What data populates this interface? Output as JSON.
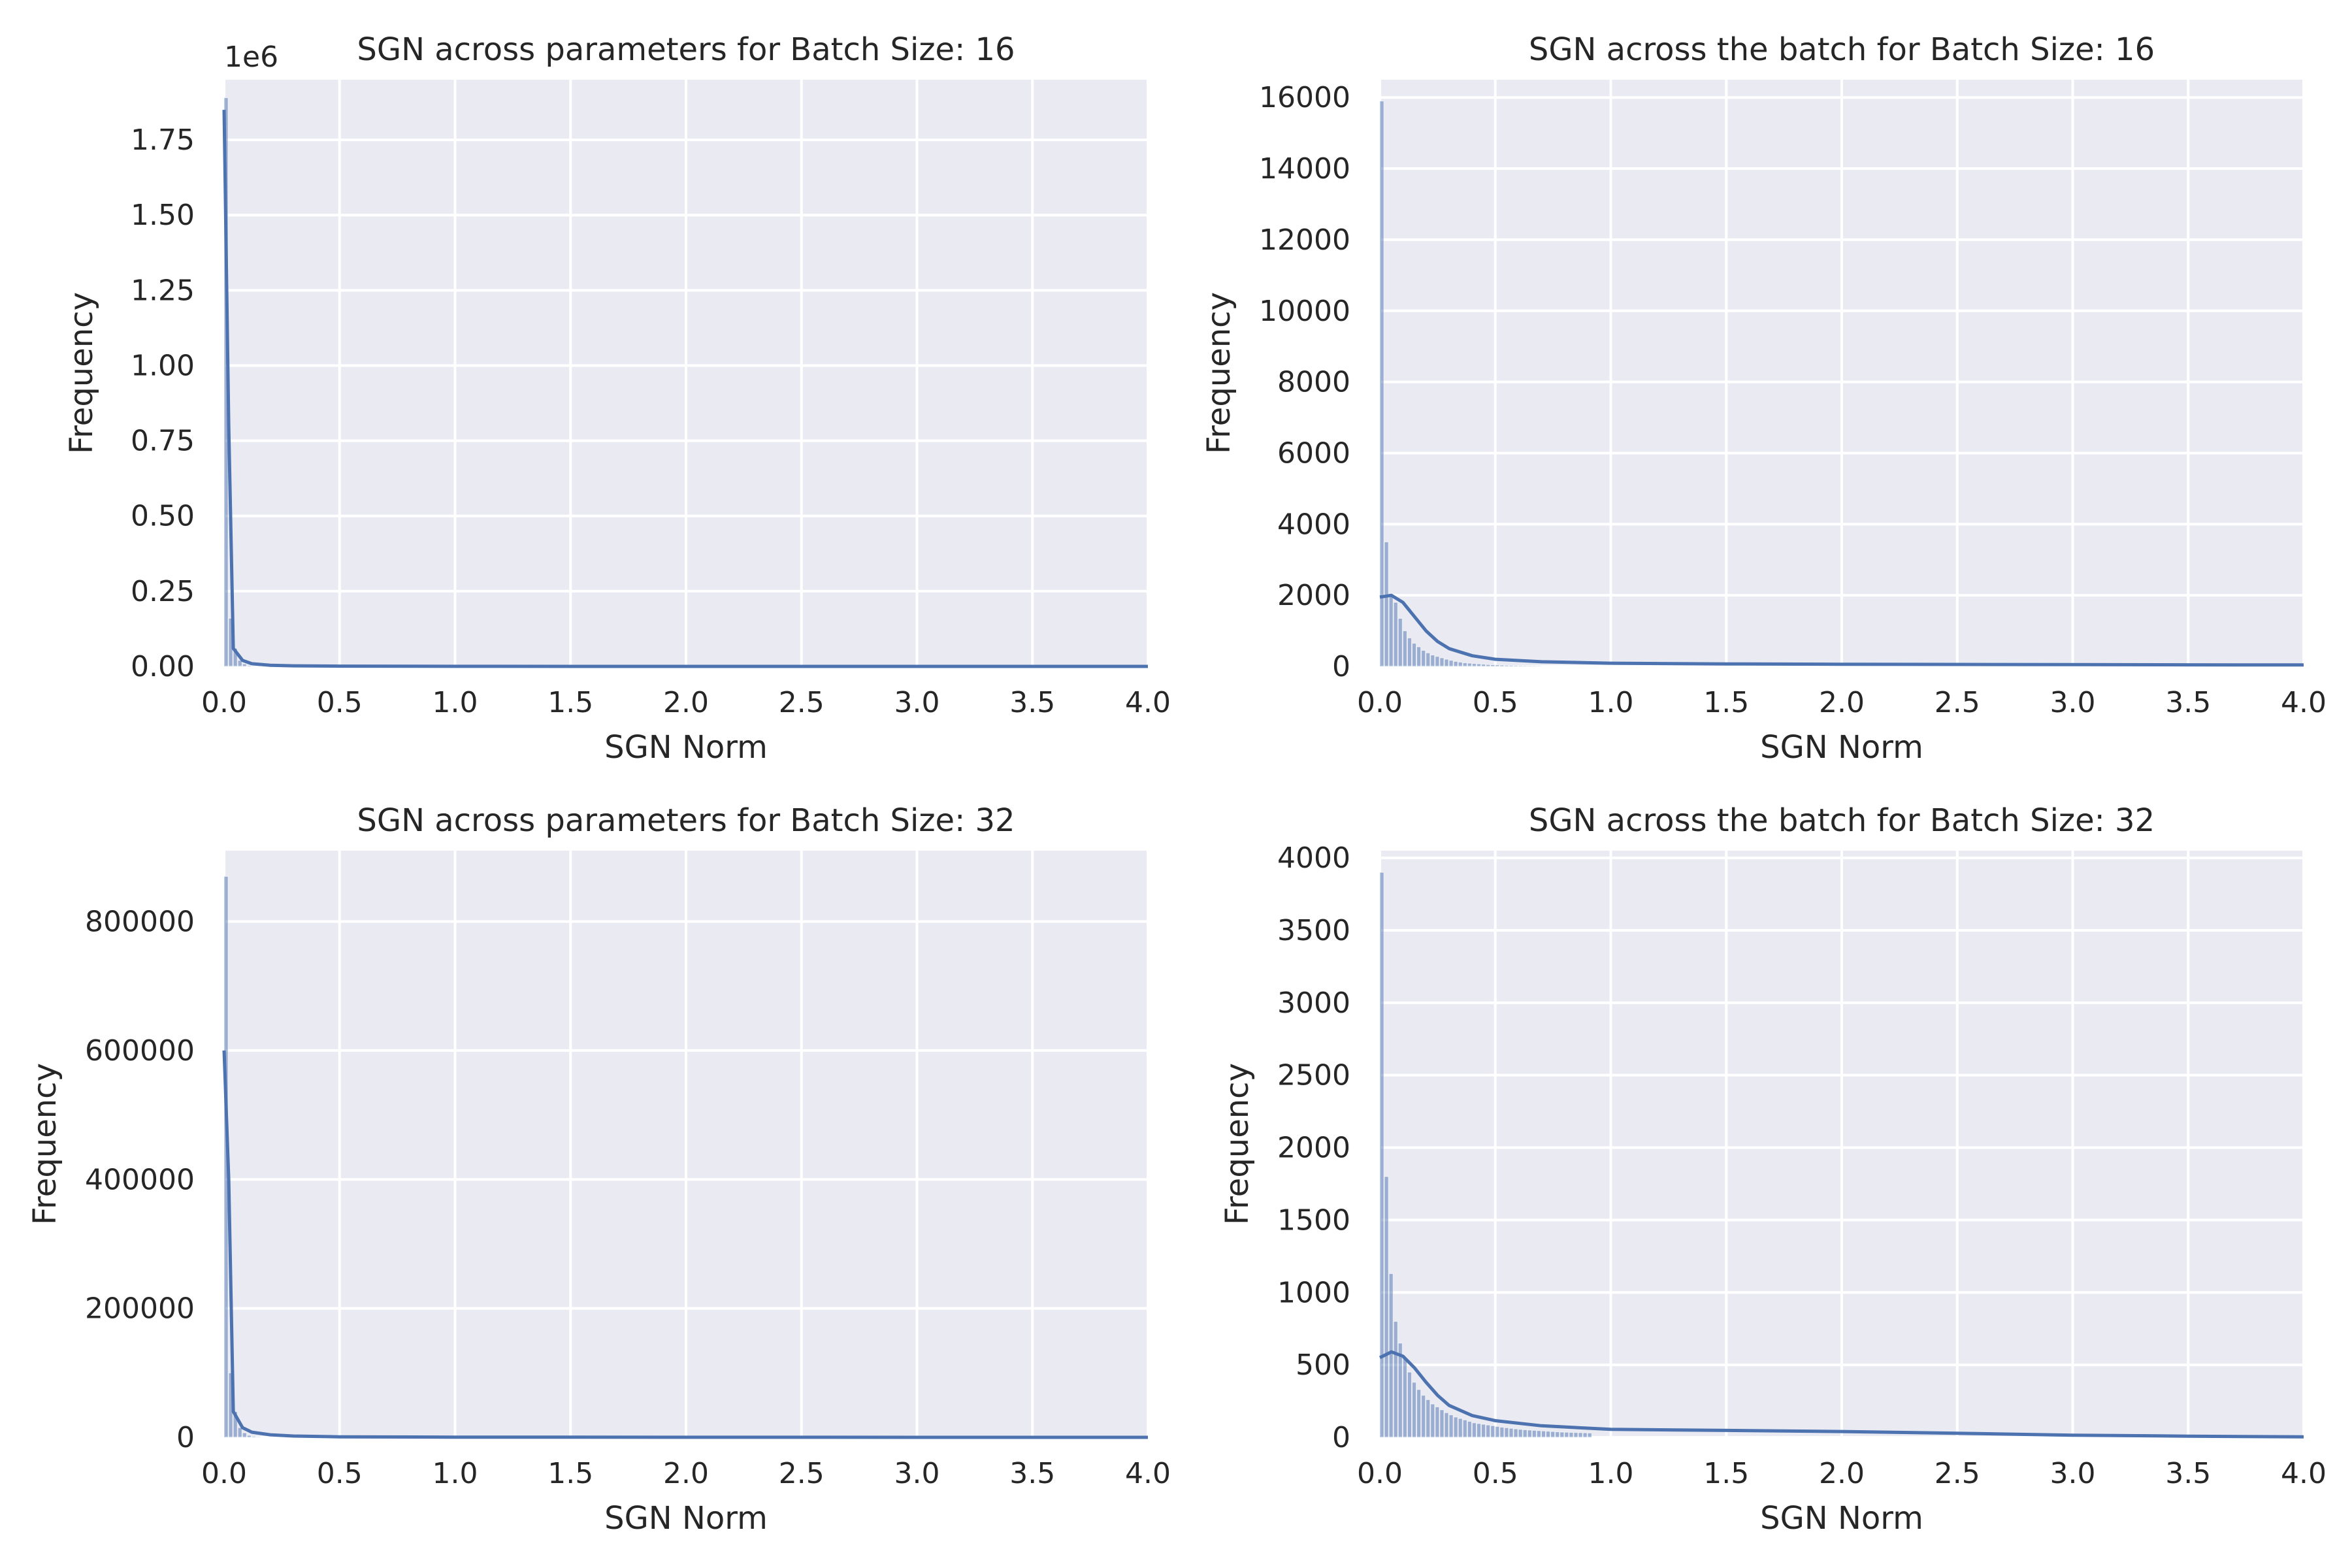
{
  "style": {
    "axes_bg": "#eaeaf2",
    "grid": "#ffffff",
    "bar_fill": "#4c72b0",
    "bar_opacity": 0.5,
    "kde_line": "#4c72b0",
    "text": "#262626"
  },
  "chart_data": [
    {
      "type": "histogram",
      "title": "SGN across parameters for Batch Size: 16",
      "xlabel": "SGN Norm",
      "ylabel": "Frequency",
      "xlim": [
        0,
        4.0
      ],
      "ylim": [
        0,
        1950000
      ],
      "x_ticks": [
        0,
        0.5,
        1.0,
        1.5,
        2.0,
        2.5,
        3.0,
        3.5,
        4.0
      ],
      "x_tick_labels": [
        "0.0",
        "0.5",
        "1.0",
        "1.5",
        "2.0",
        "2.5",
        "3.0",
        "3.5",
        "4.0"
      ],
      "y_ticks": [
        0,
        250000,
        500000,
        750000,
        1000000,
        1250000,
        1500000,
        1750000
      ],
      "y_tick_labels": [
        "0.00",
        "0.25",
        "0.50",
        "0.75",
        "1.00",
        "1.25",
        "1.50",
        "1.75"
      ],
      "y_offset_label": "1e6",
      "grid": true,
      "bin_width": 0.02,
      "bins": [
        1890000,
        160000,
        60000,
        20000,
        8000,
        3000,
        1500,
        800
      ],
      "kde": [
        [
          0,
          1850000
        ],
        [
          0.02,
          800000
        ],
        [
          0.04,
          60000
        ],
        [
          0.08,
          20000
        ],
        [
          0.12,
          9000
        ],
        [
          0.2,
          4000
        ],
        [
          0.3,
          2000
        ],
        [
          0.5,
          800
        ],
        [
          1.0,
          300
        ],
        [
          2.0,
          100
        ],
        [
          4.0,
          0
        ]
      ]
    },
    {
      "type": "histogram",
      "title": "SGN across the batch for Batch Size: 16",
      "xlabel": "SGN Norm",
      "ylabel": "Frequency",
      "xlim": [
        0,
        4.0
      ],
      "ylim": [
        0,
        16500
      ],
      "x_ticks": [
        0,
        0.5,
        1.0,
        1.5,
        2.0,
        2.5,
        3.0,
        3.5,
        4.0
      ],
      "x_tick_labels": [
        "0.0",
        "0.5",
        "1.0",
        "1.5",
        "2.0",
        "2.5",
        "3.0",
        "3.5",
        "4.0"
      ],
      "y_ticks": [
        0,
        2000,
        4000,
        6000,
        8000,
        10000,
        12000,
        14000,
        16000
      ],
      "y_tick_labels": [
        "0",
        "2000",
        "4000",
        "6000",
        "8000",
        "10000",
        "12000",
        "14000",
        "16000"
      ],
      "grid": true,
      "bin_width": 0.02,
      "bins": [
        15900,
        3500,
        2000,
        1800,
        1350,
        1000,
        800,
        650,
        550,
        450,
        380,
        320,
        280,
        240,
        200,
        170,
        140,
        120,
        100,
        90,
        80,
        70,
        60,
        50,
        45,
        40,
        35,
        30,
        28,
        25,
        22,
        20,
        18,
        16,
        14
      ],
      "kde": [
        [
          0,
          1950
        ],
        [
          0.05,
          2000
        ],
        [
          0.1,
          1800
        ],
        [
          0.15,
          1400
        ],
        [
          0.2,
          1000
        ],
        [
          0.25,
          700
        ],
        [
          0.3,
          500
        ],
        [
          0.4,
          300
        ],
        [
          0.5,
          200
        ],
        [
          0.7,
          130
        ],
        [
          1.0,
          90
        ],
        [
          1.5,
          70
        ],
        [
          2.0,
          60
        ],
        [
          2.5,
          55
        ],
        [
          3.0,
          50
        ],
        [
          3.5,
          45
        ],
        [
          4.0,
          40
        ]
      ]
    },
    {
      "type": "histogram",
      "title": "SGN across parameters for Batch Size: 32",
      "xlabel": "SGN Norm",
      "ylabel": "Frequency",
      "xlim": [
        0,
        4.0
      ],
      "ylim": [
        0,
        910000
      ],
      "x_ticks": [
        0,
        0.5,
        1.0,
        1.5,
        2.0,
        2.5,
        3.0,
        3.5,
        4.0
      ],
      "x_tick_labels": [
        "0.0",
        "0.5",
        "1.0",
        "1.5",
        "2.0",
        "2.5",
        "3.0",
        "3.5",
        "4.0"
      ],
      "y_ticks": [
        0,
        200000,
        400000,
        600000,
        800000
      ],
      "y_tick_labels": [
        "0",
        "200000",
        "400000",
        "600000",
        "800000"
      ],
      "grid": true,
      "bin_width": 0.02,
      "bins": [
        870000,
        100000,
        40000,
        15000,
        7000,
        3000,
        1500,
        800
      ],
      "kde": [
        [
          0,
          600000
        ],
        [
          0.02,
          400000
        ],
        [
          0.04,
          40000
        ],
        [
          0.08,
          15000
        ],
        [
          0.12,
          8000
        ],
        [
          0.2,
          4000
        ],
        [
          0.3,
          2000
        ],
        [
          0.5,
          800
        ],
        [
          1.0,
          300
        ],
        [
          2.0,
          100
        ],
        [
          4.0,
          0
        ]
      ]
    },
    {
      "type": "histogram",
      "title": "SGN across the batch for Batch Size: 32",
      "xlabel": "SGN Norm",
      "ylabel": "Frequency",
      "xlim": [
        0,
        4.0
      ],
      "ylim": [
        0,
        4050
      ],
      "x_ticks": [
        0,
        0.5,
        1.0,
        1.5,
        2.0,
        2.5,
        3.0,
        3.5,
        4.0
      ],
      "x_tick_labels": [
        "0.0",
        "0.5",
        "1.0",
        "1.5",
        "2.0",
        "2.5",
        "3.0",
        "3.5",
        "4.0"
      ],
      "y_ticks": [
        0,
        500,
        1000,
        1500,
        2000,
        2500,
        3000,
        3500,
        4000
      ],
      "y_tick_labels": [
        "0",
        "500",
        "1000",
        "1500",
        "2000",
        "2500",
        "3000",
        "3500",
        "4000"
      ],
      "grid": true,
      "bin_width": 0.02,
      "bins": [
        3900,
        1800,
        1130,
        800,
        650,
        550,
        450,
        380,
        330,
        290,
        260,
        230,
        210,
        190,
        170,
        155,
        140,
        130,
        120,
        110,
        100,
        95,
        90,
        85,
        80,
        75,
        70,
        66,
        62,
        58,
        55,
        52,
        50,
        48,
        46,
        44,
        42,
        40,
        38,
        36,
        35,
        34,
        33,
        32,
        31,
        30
      ],
      "kde": [
        [
          0,
          550
        ],
        [
          0.05,
          590
        ],
        [
          0.1,
          560
        ],
        [
          0.15,
          480
        ],
        [
          0.2,
          380
        ],
        [
          0.25,
          290
        ],
        [
          0.3,
          220
        ],
        [
          0.4,
          150
        ],
        [
          0.5,
          115
        ],
        [
          0.7,
          80
        ],
        [
          1.0,
          55
        ],
        [
          1.5,
          48
        ],
        [
          2.0,
          40
        ],
        [
          2.5,
          28
        ],
        [
          3.0,
          15
        ],
        [
          3.5,
          8
        ],
        [
          4.0,
          3
        ]
      ]
    }
  ]
}
